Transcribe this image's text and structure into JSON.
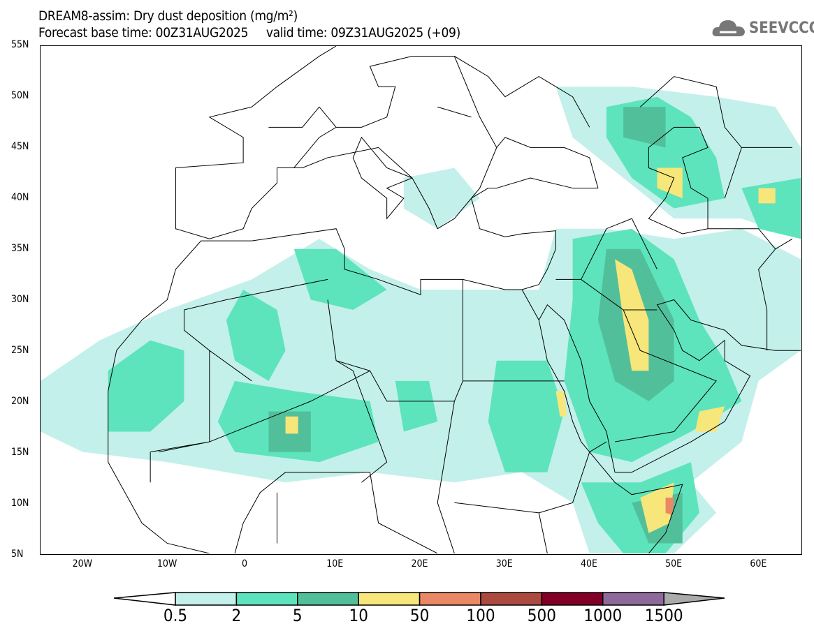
{
  "header": {
    "title": "DREAM8-assim: Dry dust deposition (mg/m²)",
    "subtitle": "Forecast base time: 00Z31AUG2025     valid time: 09Z31AUG2025 (+09)"
  },
  "logo": {
    "text": "SEEVCCC",
    "icon": "cloud-icon"
  },
  "chart_data": {
    "type": "heatmap",
    "title": "DREAM8-assim: Dry dust deposition (mg/m²)",
    "xlim": [
      -25,
      65
    ],
    "ylim": [
      5,
      55
    ],
    "xticks": [
      {
        "v": -20,
        "label": "20W"
      },
      {
        "v": -10,
        "label": "10W"
      },
      {
        "v": 0,
        "label": "0"
      },
      {
        "v": 10,
        "label": "10E"
      },
      {
        "v": 20,
        "label": "20E"
      },
      {
        "v": 30,
        "label": "30E"
      },
      {
        "v": 40,
        "label": "40E"
      },
      {
        "v": 50,
        "label": "50E"
      },
      {
        "v": 60,
        "label": "60E"
      }
    ],
    "yticks": [
      {
        "v": 55,
        "label": "55N"
      },
      {
        "v": 50,
        "label": "50N"
      },
      {
        "v": 45,
        "label": "45N"
      },
      {
        "v": 40,
        "label": "40N"
      },
      {
        "v": 35,
        "label": "35N"
      },
      {
        "v": 30,
        "label": "30N"
      },
      {
        "v": 25,
        "label": "25N"
      },
      {
        "v": 20,
        "label": "20N"
      },
      {
        "v": 15,
        "label": "15N"
      },
      {
        "v": 10,
        "label": "10N"
      },
      {
        "v": 5,
        "label": "5N"
      }
    ],
    "levels": [
      "0.5",
      "2",
      "5",
      "10",
      "50",
      "100",
      "500",
      "1000",
      "1500"
    ],
    "colors": [
      "#c3f0ea",
      "#5de4bd",
      "#52bf9b",
      "#f7e67a",
      "#ea8866",
      "#ad4a40",
      "#820028",
      "#8e6a9a"
    ],
    "over_color": "#aaaaaa"
  }
}
